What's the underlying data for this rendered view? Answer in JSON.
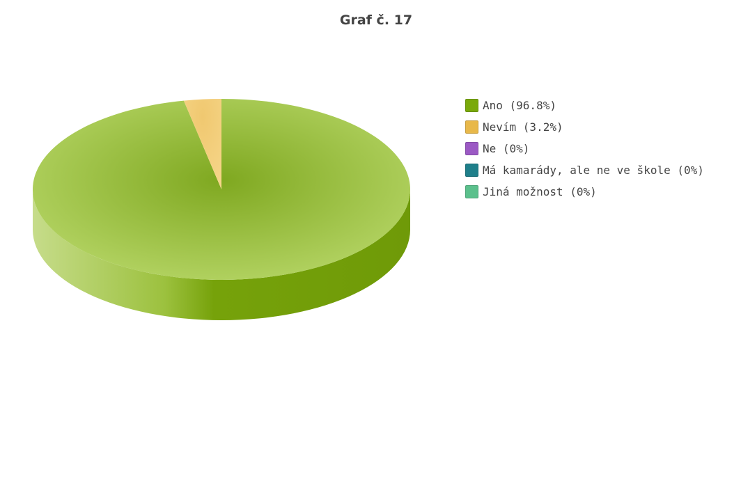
{
  "chart_data": {
    "type": "pie",
    "title": "Graf č. 17",
    "slices": [
      {
        "label": "Ano",
        "legend": "Ano (96.8%)",
        "value": 96.8,
        "color": "#7aa90a"
      },
      {
        "label": "Nevím",
        "legend": "Nevím (3.2%)",
        "value": 3.2,
        "color": "#e8b84a"
      },
      {
        "label": "Ne",
        "legend": "Ne (0%)",
        "value": 0,
        "color": "#9b59c4"
      },
      {
        "label": "Má kamarády, ale ne ve škole",
        "legend": "Má kamarády, ale ne ve škole (0%)",
        "value": 0,
        "color": "#1f7f8a"
      },
      {
        "label": "Jiná možnost",
        "legend": "Jiná možnost (0%)",
        "value": 0,
        "color": "#5bc08c"
      }
    ],
    "legend_position": "right",
    "style": "3d"
  }
}
